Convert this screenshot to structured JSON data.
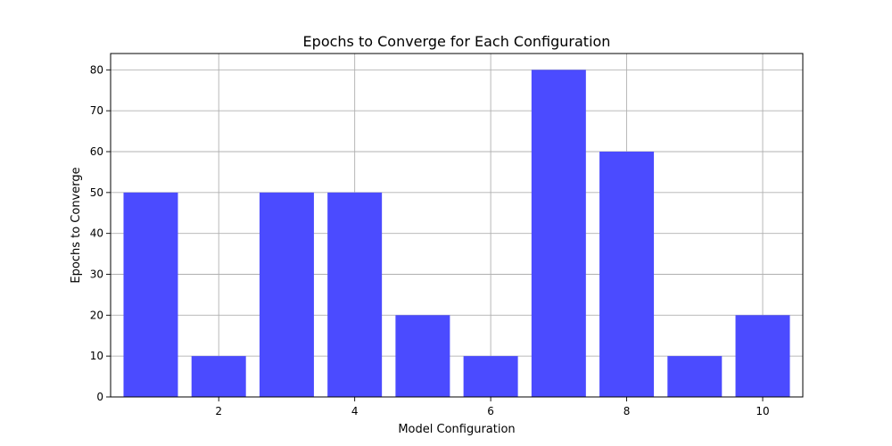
{
  "chart_data": {
    "type": "bar",
    "title": "Epochs to Converge for Each Configuration",
    "xlabel": "Model Configuration",
    "ylabel": "Epochs to Converge",
    "x": [
      1,
      2,
      3,
      4,
      5,
      6,
      7,
      8,
      9,
      10
    ],
    "values": [
      50,
      10,
      50,
      50,
      20,
      10,
      80,
      60,
      10,
      20
    ],
    "xlim": [
      0.41,
      10.59
    ],
    "ylim": [
      0,
      84
    ],
    "xticks": [
      2,
      4,
      6,
      8,
      10
    ],
    "yticks": [
      0,
      10,
      20,
      30,
      40,
      50,
      60,
      70,
      80
    ],
    "bar_width": 0.8,
    "bar_color": "#4b4bff",
    "grid": true
  }
}
